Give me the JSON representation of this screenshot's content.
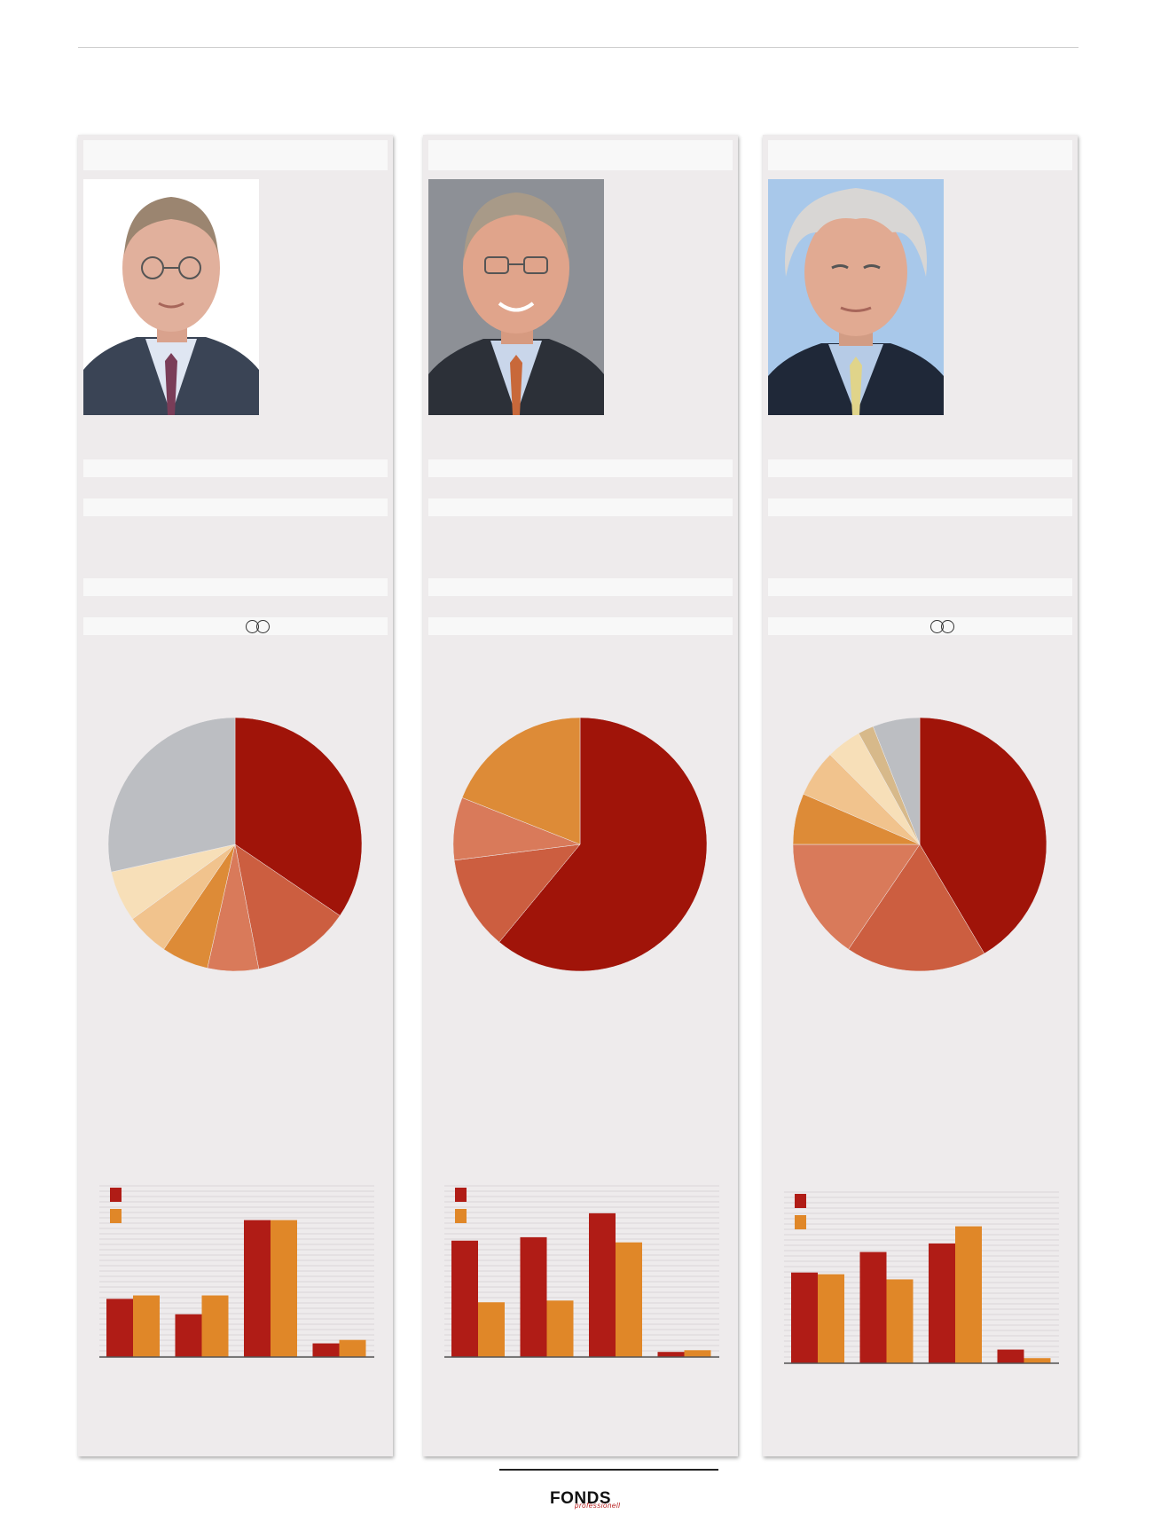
{
  "footer": {
    "logo": "FONDS",
    "logo_sub": "professionell"
  },
  "columns": [
    {
      "id": "left",
      "has_rings": true,
      "pie_colors": [
        "#a01409",
        "#cc5e40",
        "#d97a5a",
        "#dd8b37",
        "#f1c38d",
        "#f7dfb8",
        "#bcbec2"
      ],
      "chart_data": {
        "type": "pie",
        "values": [
          34.5,
          12.5,
          6.5,
          6.0,
          5.5,
          6.5,
          28.5
        ]
      },
      "bar_chart": {
        "type": "bar",
        "colors": [
          "#b01c16",
          "#e08728"
        ],
        "series": [
          {
            "values": [
              34,
              25,
              80,
              8
            ]
          },
          {
            "values": [
              36,
              36,
              80,
              10
            ]
          }
        ],
        "ylim": [
          0,
          100
        ]
      }
    },
    {
      "id": "middle",
      "has_rings": false,
      "pie_colors": [
        "#a01409",
        "#cc5e40",
        "#d97a5a",
        "#dd8b37"
      ],
      "chart_data": {
        "type": "pie",
        "values": [
          61.0,
          12.0,
          8.0,
          19.0
        ]
      },
      "bar_chart": {
        "type": "bar",
        "colors": [
          "#b01c16",
          "#e08728"
        ],
        "series": [
          {
            "values": [
              68,
              70,
              84,
              3
            ]
          },
          {
            "values": [
              32,
              33,
              67,
              4
            ]
          }
        ],
        "ylim": [
          0,
          100
        ]
      }
    },
    {
      "id": "right",
      "has_rings": true,
      "pie_colors": [
        "#a01409",
        "#cc5e40",
        "#d97a5a",
        "#dd8b37",
        "#f1c38d",
        "#f7dfb8",
        "#d7b98a",
        "#bcbec2"
      ],
      "chart_data": {
        "type": "pie",
        "values": [
          41.5,
          18.0,
          15.5,
          6.5,
          6.0,
          4.5,
          2.0,
          6.0
        ]
      },
      "bar_chart": {
        "type": "bar",
        "colors": [
          "#b01c16",
          "#e08728"
        ],
        "series": [
          {
            "values": [
              53,
              65,
              70,
              8
            ]
          },
          {
            "values": [
              52,
              49,
              80,
              3
            ]
          }
        ],
        "ylim": [
          0,
          100
        ]
      }
    }
  ]
}
